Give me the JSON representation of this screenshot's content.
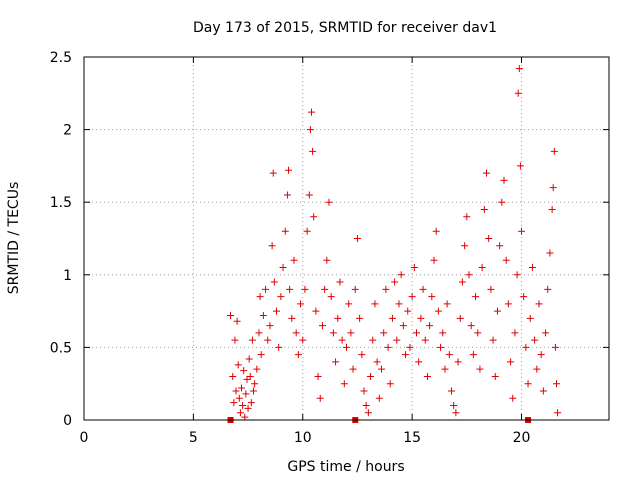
{
  "chart_data": {
    "type": "scatter",
    "title": "Day 173 of 2015, SRMTID for receiver dav1",
    "xlabel": "GPS time / hours",
    "ylabel": "SRMTID / TECUs",
    "xlim": [
      0,
      24
    ],
    "ylim": [
      0,
      2.5
    ],
    "xticks": [
      0,
      5,
      10,
      15,
      20
    ],
    "xtick_labels": [
      "0",
      "5",
      "10",
      "15",
      "20"
    ],
    "yticks": [
      0,
      0.5,
      1,
      1.5,
      2,
      2.5
    ],
    "ytick_labels": [
      "0",
      "0.5",
      "1",
      "1.5",
      "2",
      "2.5"
    ],
    "grid": true,
    "marker": "plus",
    "marker_color": "#e00000",
    "series": [
      {
        "name": "SRMTID",
        "points": [
          [
            6.7,
            0.72
          ],
          [
            6.8,
            0.3
          ],
          [
            6.85,
            0.12
          ],
          [
            6.9,
            0.55
          ],
          [
            6.95,
            0.2
          ],
          [
            7.0,
            0.68
          ],
          [
            7.05,
            0.38
          ],
          [
            7.1,
            0.15
          ],
          [
            7.15,
            0.05
          ],
          [
            7.2,
            0.22
          ],
          [
            7.25,
            0.1
          ],
          [
            7.3,
            0.34
          ],
          [
            7.35,
            0.02
          ],
          [
            7.4,
            0.18
          ],
          [
            7.45,
            0.28
          ],
          [
            7.5,
            0.08
          ],
          [
            7.55,
            0.42
          ],
          [
            7.6,
            0.3
          ],
          [
            7.65,
            0.12
          ],
          [
            7.7,
            0.55
          ],
          [
            7.75,
            0.2
          ],
          [
            7.8,
            0.25
          ],
          [
            7.9,
            0.35
          ],
          [
            8.0,
            0.6
          ],
          [
            8.05,
            0.85
          ],
          [
            8.1,
            0.45
          ],
          [
            8.2,
            0.72
          ],
          [
            8.3,
            0.9
          ],
          [
            8.4,
            0.55
          ],
          [
            8.5,
            0.65
          ],
          [
            8.6,
            1.2
          ],
          [
            8.65,
            1.7
          ],
          [
            8.7,
            0.95
          ],
          [
            8.8,
            0.75
          ],
          [
            8.9,
            0.5
          ],
          [
            9.0,
            0.85
          ],
          [
            9.1,
            1.05
          ],
          [
            9.2,
            1.3
          ],
          [
            9.3,
            1.55
          ],
          [
            9.35,
            1.72
          ],
          [
            9.4,
            0.9
          ],
          [
            9.5,
            0.7
          ],
          [
            9.6,
            1.1
          ],
          [
            9.7,
            0.6
          ],
          [
            9.8,
            0.45
          ],
          [
            9.9,
            0.8
          ],
          [
            10.0,
            0.55
          ],
          [
            10.1,
            0.9
          ],
          [
            10.2,
            1.3
          ],
          [
            10.3,
            1.55
          ],
          [
            10.35,
            2.0
          ],
          [
            10.4,
            2.12
          ],
          [
            10.45,
            1.85
          ],
          [
            10.5,
            1.4
          ],
          [
            10.6,
            0.75
          ],
          [
            10.7,
            0.3
          ],
          [
            10.8,
            0.15
          ],
          [
            10.9,
            0.65
          ],
          [
            11.0,
            0.9
          ],
          [
            11.1,
            1.1
          ],
          [
            11.2,
            1.5
          ],
          [
            11.3,
            0.85
          ],
          [
            11.4,
            0.6
          ],
          [
            11.5,
            0.4
          ],
          [
            11.6,
            0.7
          ],
          [
            11.7,
            0.95
          ],
          [
            11.8,
            0.55
          ],
          [
            11.9,
            0.25
          ],
          [
            12.0,
            0.5
          ],
          [
            12.1,
            0.8
          ],
          [
            12.2,
            0.6
          ],
          [
            12.3,
            0.35
          ],
          [
            12.4,
            0.9
          ],
          [
            12.5,
            1.25
          ],
          [
            12.6,
            0.7
          ],
          [
            12.7,
            0.45
          ],
          [
            12.8,
            0.2
          ],
          [
            12.9,
            0.1
          ],
          [
            13.0,
            0.05
          ],
          [
            13.1,
            0.3
          ],
          [
            13.2,
            0.55
          ],
          [
            13.3,
            0.8
          ],
          [
            13.4,
            0.4
          ],
          [
            13.5,
            0.15
          ],
          [
            13.6,
            0.35
          ],
          [
            13.7,
            0.6
          ],
          [
            13.8,
            0.9
          ],
          [
            13.9,
            0.5
          ],
          [
            14.0,
            0.25
          ],
          [
            14.1,
            0.7
          ],
          [
            14.2,
            0.95
          ],
          [
            14.3,
            0.55
          ],
          [
            14.4,
            0.8
          ],
          [
            14.5,
            1.0
          ],
          [
            14.6,
            0.65
          ],
          [
            14.7,
            0.45
          ],
          [
            14.8,
            0.75
          ],
          [
            14.9,
            0.5
          ],
          [
            15.0,
            0.85
          ],
          [
            15.1,
            1.05
          ],
          [
            15.2,
            0.6
          ],
          [
            15.3,
            0.4
          ],
          [
            15.4,
            0.7
          ],
          [
            15.5,
            0.9
          ],
          [
            15.6,
            0.55
          ],
          [
            15.7,
            0.3
          ],
          [
            15.8,
            0.65
          ],
          [
            15.9,
            0.85
          ],
          [
            16.0,
            1.1
          ],
          [
            16.1,
            1.3
          ],
          [
            16.2,
            0.75
          ],
          [
            16.3,
            0.5
          ],
          [
            16.4,
            0.6
          ],
          [
            16.5,
            0.35
          ],
          [
            16.6,
            0.8
          ],
          [
            16.7,
            0.45
          ],
          [
            16.8,
            0.2
          ],
          [
            16.9,
            0.1
          ],
          [
            17.0,
            0.05
          ],
          [
            17.1,
            0.4
          ],
          [
            17.2,
            0.7
          ],
          [
            17.3,
            0.95
          ],
          [
            17.4,
            1.2
          ],
          [
            17.5,
            1.4
          ],
          [
            17.6,
            1.0
          ],
          [
            17.7,
            0.65
          ],
          [
            17.8,
            0.45
          ],
          [
            17.9,
            0.85
          ],
          [
            18.0,
            0.6
          ],
          [
            18.1,
            0.35
          ],
          [
            18.2,
            1.05
          ],
          [
            18.3,
            1.45
          ],
          [
            18.4,
            1.7
          ],
          [
            18.5,
            1.25
          ],
          [
            18.6,
            0.9
          ],
          [
            18.7,
            0.55
          ],
          [
            18.8,
            0.3
          ],
          [
            18.9,
            0.75
          ],
          [
            19.0,
            1.2
          ],
          [
            19.1,
            1.5
          ],
          [
            19.2,
            1.65
          ],
          [
            19.3,
            1.1
          ],
          [
            19.4,
            0.8
          ],
          [
            19.5,
            0.4
          ],
          [
            19.6,
            0.15
          ],
          [
            19.7,
            0.6
          ],
          [
            19.8,
            1.0
          ],
          [
            19.85,
            2.25
          ],
          [
            19.9,
            2.42
          ],
          [
            19.95,
            1.75
          ],
          [
            20.0,
            1.3
          ],
          [
            20.1,
            0.85
          ],
          [
            20.2,
            0.5
          ],
          [
            20.3,
            0.25
          ],
          [
            20.4,
            0.7
          ],
          [
            20.5,
            1.05
          ],
          [
            20.6,
            0.55
          ],
          [
            20.7,
            0.35
          ],
          [
            20.8,
            0.8
          ],
          [
            20.9,
            0.45
          ],
          [
            21.0,
            0.2
          ],
          [
            21.1,
            0.6
          ],
          [
            21.2,
            0.9
          ],
          [
            21.3,
            1.15
          ],
          [
            21.4,
            1.45
          ],
          [
            21.45,
            1.6
          ],
          [
            21.5,
            1.85
          ],
          [
            21.55,
            0.5
          ],
          [
            21.6,
            0.25
          ],
          [
            21.65,
            0.05
          ]
        ]
      },
      {
        "name": "zero-markers",
        "points": [
          [
            6.7,
            0
          ],
          [
            12.4,
            0
          ],
          [
            20.3,
            0
          ]
        ]
      }
    ]
  }
}
